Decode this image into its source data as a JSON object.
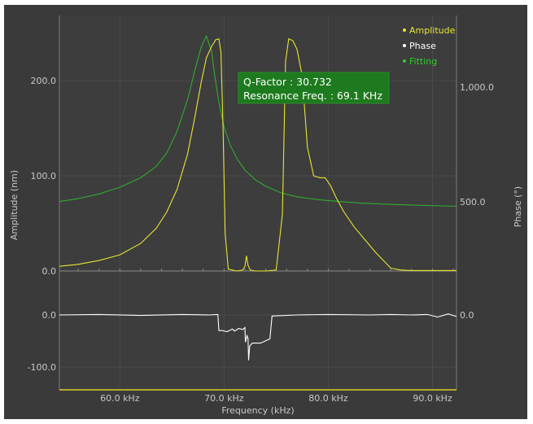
{
  "chart_data": {
    "type": "line",
    "xlabel": "Frequency (kHz)",
    "ylabel_left": "Amplitude (nm)",
    "ylabel_right": "Phase (°)",
    "x_ticks": [
      "60.0 kHz",
      "70.0 kHz",
      "80.0 kHz",
      "90.0 kHz"
    ],
    "x_tick_values": [
      60,
      70,
      80,
      90
    ],
    "xlim": [
      54.2,
      92.3
    ],
    "amp_ticks": [
      "0.0",
      "100.0",
      "200.0"
    ],
    "amp_tick_values": [
      0,
      100,
      200
    ],
    "amp_lim": [
      0,
      260
    ],
    "phase_ticks": [
      "500.0",
      "1,000.0"
    ],
    "phase_tick_values": [
      500,
      1000
    ],
    "phase_lim": [
      200,
      1275
    ],
    "lower_ticks_left": [
      "0.0",
      "-100.0"
    ],
    "lower_tick_values_left": [
      0,
      -100
    ],
    "lower_ticks_right": [
      "0.0"
    ],
    "lower_tick_values_right": [
      0
    ],
    "lower_lim": [
      -130,
      0
    ],
    "grid": true,
    "legend_position": "top-right",
    "legend": [
      {
        "name": "Amplitude",
        "color": "#e6e633"
      },
      {
        "name": "Phase",
        "color": "#ffffff"
      },
      {
        "name": "Fitting",
        "color": "#2bd12b"
      }
    ],
    "annotation": {
      "line1": "Q-Factor : 30.732",
      "line2": "Resonance Freq. : 69.1 KHz",
      "background": "#1e7a1e"
    },
    "series": [
      {
        "name": "Amplitude",
        "color": "#e6e633",
        "x": [
          54.2,
          56,
          58,
          60,
          62,
          63.5,
          64.5,
          65.5,
          66.5,
          67.2,
          67.8,
          68.3,
          68.8,
          69.2,
          69.5,
          69.7,
          69.9,
          70.1,
          70.4,
          71.2,
          71.8,
          72.0,
          72.15,
          72.3,
          72.5,
          73,
          74,
          75,
          75.6,
          75.9,
          76.2,
          76.6,
          77.0,
          77.5,
          78.0,
          78.6,
          79.2,
          79.7,
          80.2,
          80.8,
          81.5,
          82.5,
          83.5,
          84.5,
          85.2,
          86,
          87,
          88,
          90,
          92.3
        ],
        "values": [
          5,
          7,
          11,
          17,
          29,
          45,
          62,
          86,
          123,
          162,
          198,
          224,
          236,
          243,
          244,
          230,
          150,
          40,
          2,
          0,
          1,
          5,
          16,
          6,
          1,
          0,
          0,
          1,
          60,
          220,
          244,
          242,
          233,
          205,
          130,
          100,
          98,
          98,
          90,
          76,
          62,
          46,
          33,
          20,
          12,
          3,
          1,
          0.5,
          0.5,
          0.5
        ]
      },
      {
        "name": "Fitting",
        "color": "#2bd12b",
        "x": [
          54.2,
          56,
          58,
          60,
          62,
          63.5,
          64.5,
          65.5,
          66.5,
          67.2,
          67.8,
          68.3,
          68.8,
          69.1,
          69.5,
          70,
          70.6,
          71.3,
          72,
          73,
          74,
          75.5,
          77,
          79,
          81,
          83,
          86,
          89,
          92.3
        ],
        "values": [
          73,
          76,
          81,
          88,
          98,
          110,
          124,
          147,
          180,
          211,
          235,
          247,
          231,
          206,
          177,
          151,
          132,
          117,
          106,
          96,
          89,
          82,
          78,
          75,
          73,
          71.5,
          70,
          69,
          68
        ]
      },
      {
        "name": "Phase",
        "color": "#ffffff",
        "x": [
          54.2,
          58,
          62,
          66,
          68.5,
          69.4,
          69.5,
          69.8,
          70.3,
          70.8,
          71.0,
          71.4,
          71.8,
          72.0,
          72.05,
          72.2,
          72.3,
          72.35,
          72.45,
          72.7,
          73.5,
          74.4,
          74.6,
          77,
          80,
          84,
          86,
          88,
          89.5,
          90.5,
          91.5,
          92.3
        ],
        "values": [
          0,
          1,
          -1,
          1,
          0,
          1,
          -30,
          -30,
          -32,
          -27,
          -31,
          -26,
          -28,
          -24,
          -52,
          -40,
          -45,
          -87,
          -60,
          -54,
          -54,
          -46,
          -2,
          0,
          1,
          0,
          1,
          0,
          1,
          -4,
          2,
          -3
        ]
      }
    ]
  }
}
